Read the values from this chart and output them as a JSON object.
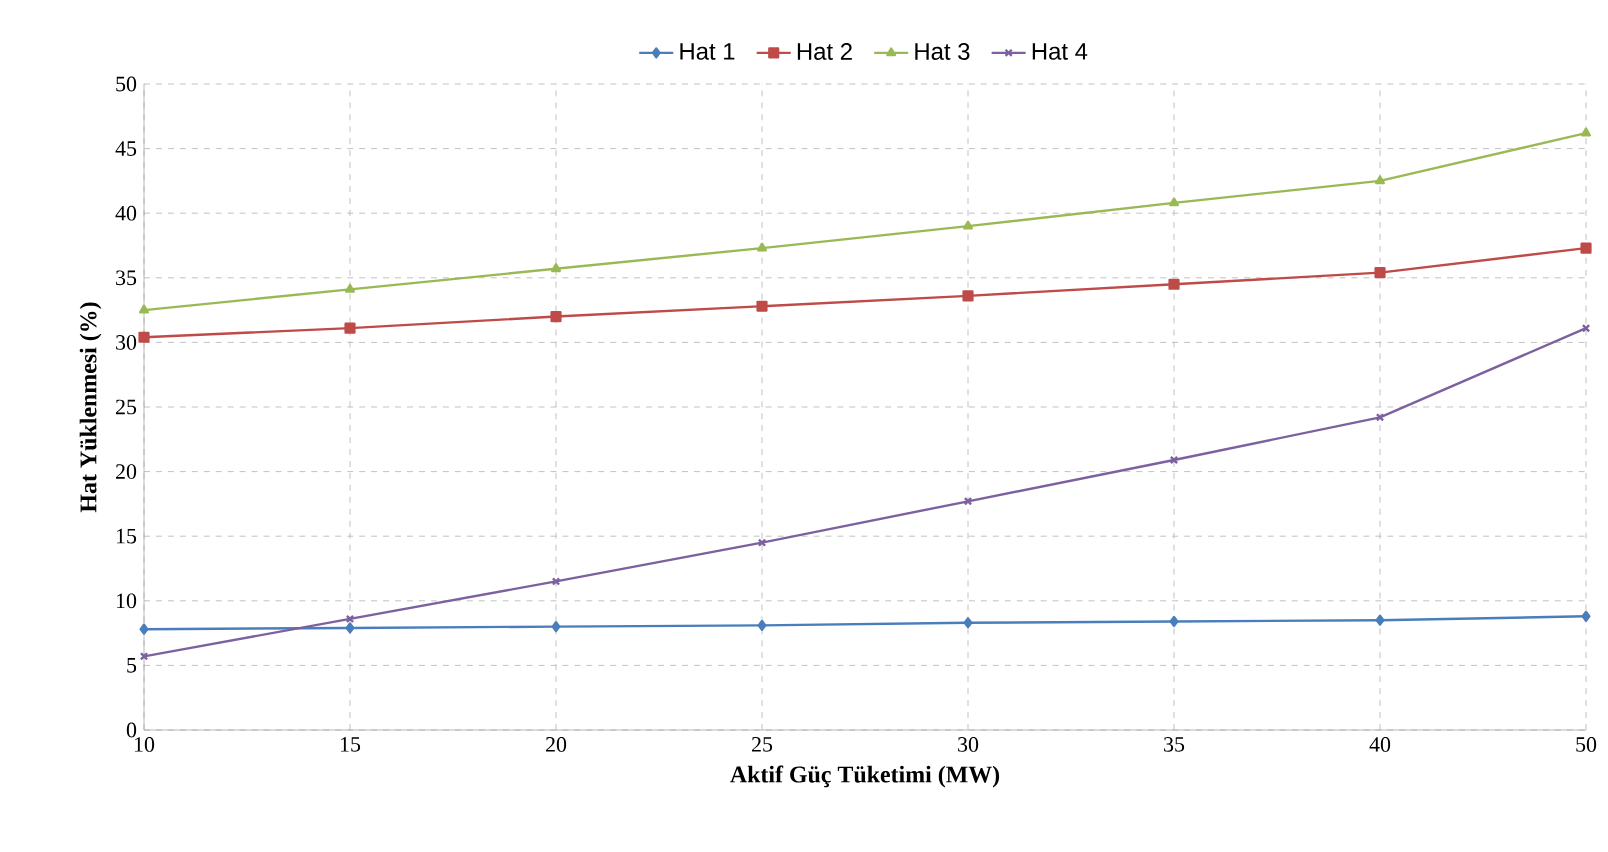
{
  "chart_data": {
    "type": "line",
    "xlabel": "Aktif Güç Tüketimi (MW)",
    "ylabel": "Hat Yüklenmesi (%)",
    "categories": [
      "10",
      "15",
      "20",
      "25",
      "30",
      "35",
      "40",
      "50"
    ],
    "series": [
      {
        "name": "Hat 1",
        "color": "#4a7ebb",
        "marker": "diamond",
        "values": [
          7.8,
          7.9,
          8.0,
          8.1,
          8.3,
          8.4,
          8.5,
          8.8
        ]
      },
      {
        "name": "Hat 2",
        "color": "#be4b48",
        "marker": "square",
        "values": [
          30.4,
          31.1,
          32.0,
          32.8,
          33.6,
          34.5,
          35.4,
          37.3
        ]
      },
      {
        "name": "Hat 3",
        "color": "#98b954",
        "marker": "triangle",
        "values": [
          32.5,
          34.1,
          35.7,
          37.3,
          39.0,
          40.8,
          42.5,
          46.2
        ]
      },
      {
        "name": "Hat 4",
        "color": "#7d60a0",
        "marker": "cross",
        "values": [
          5.7,
          8.6,
          11.5,
          14.5,
          17.7,
          20.9,
          24.2,
          31.1
        ]
      }
    ],
    "ylim": [
      0,
      50
    ],
    "yticks": [
      0,
      5,
      10,
      15,
      20,
      25,
      30,
      35,
      40,
      45,
      50
    ],
    "grid": true,
    "legend": "top",
    "line_style": "solid"
  }
}
